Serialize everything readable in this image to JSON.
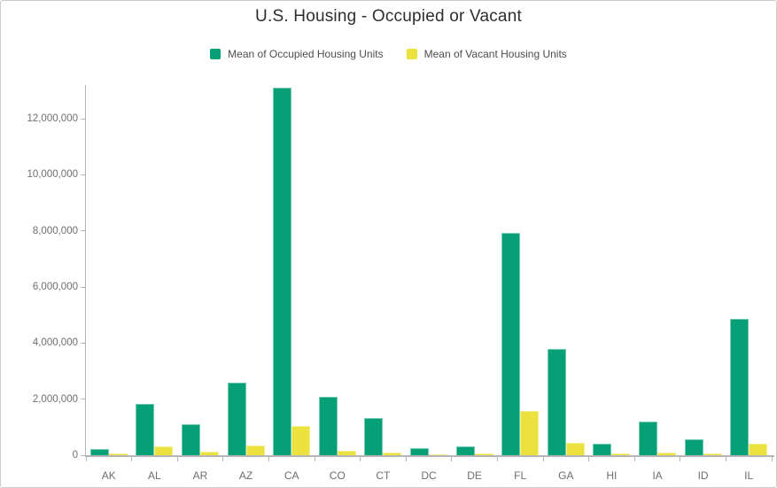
{
  "chart": {
    "title": "U.S. Housing - Occupied or Vacant"
  },
  "chart_data": {
    "type": "bar",
    "title": "U.S. Housing - Occupied or Vacant",
    "categories": [
      "AK",
      "AL",
      "AR",
      "AZ",
      "CA",
      "CO",
      "CT",
      "DC",
      "DE",
      "FL",
      "GA",
      "HI",
      "IA",
      "ID",
      "IL"
    ],
    "series": [
      {
        "name": "Mean of Occupied Housing Units",
        "color": "#05a075",
        "values": [
          210000,
          1840000,
          1100000,
          2600000,
          13120000,
          2080000,
          1320000,
          240000,
          330000,
          7930000,
          3780000,
          410000,
          1210000,
          580000,
          4860000
        ]
      },
      {
        "name": "Mean of Vacant Housing Units",
        "color": "#ebe23d",
        "values": [
          50000,
          330000,
          140000,
          360000,
          1050000,
          150000,
          80000,
          30000,
          50000,
          1580000,
          430000,
          50000,
          90000,
          50000,
          420000
        ]
      }
    ],
    "xlabel": "",
    "ylabel": "",
    "ylim": [
      0,
      13200000
    ],
    "yticks": [
      0,
      2000000,
      4000000,
      6000000,
      8000000,
      10000000,
      12000000
    ],
    "ytick_labels": [
      "0",
      "2,000,000",
      "4,000,000",
      "6,000,000",
      "8,000,000",
      "10,000,000",
      "12,000,000"
    ],
    "grid": false,
    "legend_position": "top",
    "axis_color": "#b5b5b5",
    "tick_label_color": "#6e6e6e",
    "title_color": "#2e2e2e"
  }
}
